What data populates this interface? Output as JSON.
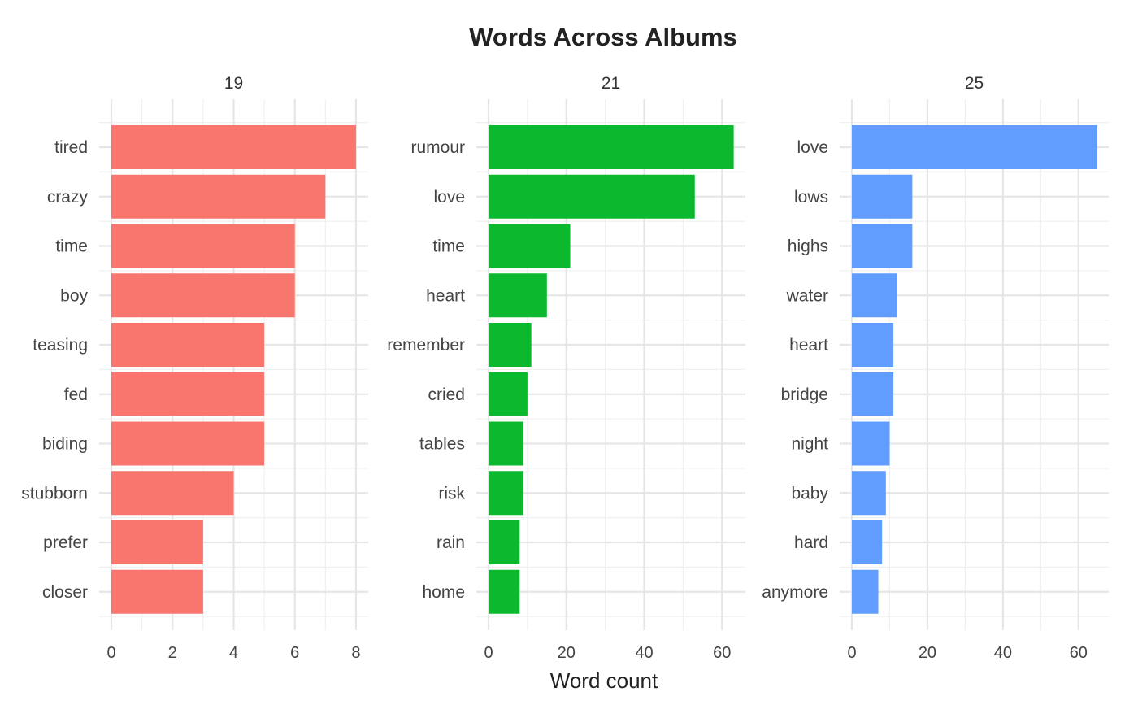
{
  "chart_data": {
    "type": "bar",
    "title": "Words Across Albums",
    "xlabel": "Word count",
    "ylabel": "",
    "grid": true,
    "orientation": "horizontal",
    "facets": [
      {
        "label": "19",
        "color": "#F8766D",
        "categories": [
          "tired",
          "crazy",
          "time",
          "boy",
          "teasing",
          "fed",
          "biding",
          "stubborn",
          "prefer",
          "closer"
        ],
        "values": [
          8,
          7,
          6,
          6,
          5,
          5,
          5,
          4,
          3,
          3
        ],
        "xlim": [
          0,
          8.4
        ],
        "ticks": [
          0,
          2,
          4,
          6,
          8
        ],
        "tick_labels": [
          "0",
          "2",
          "4",
          "6",
          "8"
        ]
      },
      {
        "label": "21",
        "color": "#0CB82E",
        "categories": [
          "rumour",
          "love",
          "time",
          "heart",
          "remember",
          "cried",
          "tables",
          "risk",
          "rain",
          "home"
        ],
        "values": [
          63,
          53,
          21,
          15,
          11,
          10,
          9,
          9,
          8,
          8
        ],
        "xlim": [
          0,
          66
        ],
        "ticks": [
          0,
          20,
          40,
          60
        ],
        "tick_labels": [
          "0",
          "20",
          "40",
          "60"
        ]
      },
      {
        "label": "25",
        "color": "#619CFF",
        "categories": [
          "love",
          "lows",
          "highs",
          "water",
          "heart",
          "bridge",
          "night",
          "baby",
          "hard",
          "anymore"
        ],
        "values": [
          65,
          16,
          16,
          12,
          11,
          11,
          10,
          9,
          8,
          7
        ],
        "xlim": [
          0,
          68
        ],
        "ticks": [
          0,
          20,
          40,
          60
        ],
        "tick_labels": [
          "0",
          "20",
          "40",
          "60"
        ]
      }
    ]
  }
}
